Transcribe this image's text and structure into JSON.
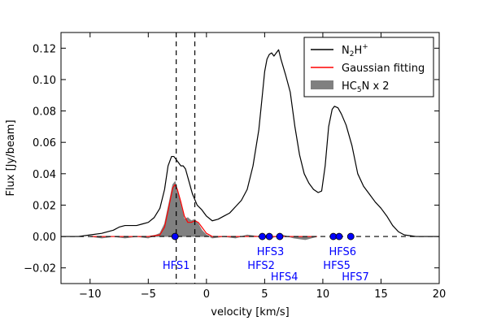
{
  "chart_data": {
    "type": "line",
    "xlabel": "velocity [km/s]",
    "ylabel": "Flux [Jy/beam]",
    "xlim": [
      -12.5,
      20
    ],
    "ylim": [
      -0.03,
      0.13
    ],
    "xticks": [
      -10,
      -5,
      0,
      5,
      10,
      15,
      20
    ],
    "xtick_labels": [
      "−10",
      "−5",
      "0",
      "5",
      "10",
      "15",
      "20"
    ],
    "yticks": [
      -0.02,
      0.0,
      0.02,
      0.04,
      0.06,
      0.08,
      0.1,
      0.12
    ],
    "ytick_labels": [
      "−0.02",
      "0.00",
      "0.02",
      "0.04",
      "0.06",
      "0.08",
      "0.10",
      "0.12"
    ],
    "legend_position": "top-right",
    "legend": [
      {
        "label_main": "N",
        "label_sub": "2",
        "label_rest": "H",
        "label_sup": "+",
        "kind": "line",
        "color": "#000000"
      },
      {
        "label_main": "Gaussian fitting",
        "kind": "line",
        "color": "#ff0000"
      },
      {
        "label_main": "HC",
        "label_sub": "5",
        "label_rest": "N x 2",
        "kind": "patch",
        "color": "#808080"
      }
    ],
    "series": [
      {
        "name": "N2H+",
        "color": "#000000",
        "points": [
          [
            -12.5,
            0.0
          ],
          [
            -11,
            0.0
          ],
          [
            -10,
            0.001
          ],
          [
            -9,
            0.002
          ],
          [
            -8,
            0.004
          ],
          [
            -7.5,
            0.006
          ],
          [
            -7,
            0.007
          ],
          [
            -6.5,
            0.007
          ],
          [
            -6,
            0.007
          ],
          [
            -5.5,
            0.008
          ],
          [
            -5,
            0.009
          ],
          [
            -4.5,
            0.012
          ],
          [
            -4,
            0.018
          ],
          [
            -3.6,
            0.03
          ],
          [
            -3.3,
            0.045
          ],
          [
            -3.0,
            0.051
          ],
          [
            -2.8,
            0.051
          ],
          [
            -2.6,
            0.049
          ],
          [
            -2.4,
            0.047
          ],
          [
            -2.2,
            0.045
          ],
          [
            -2.0,
            0.045
          ],
          [
            -1.8,
            0.043
          ],
          [
            -1.5,
            0.035
          ],
          [
            -1.2,
            0.027
          ],
          [
            -0.8,
            0.02
          ],
          [
            -0.4,
            0.017
          ],
          [
            0.0,
            0.013
          ],
          [
            0.5,
            0.01
          ],
          [
            1.0,
            0.011
          ],
          [
            1.5,
            0.013
          ],
          [
            2.0,
            0.015
          ],
          [
            2.5,
            0.019
          ],
          [
            3.0,
            0.023
          ],
          [
            3.5,
            0.03
          ],
          [
            4.0,
            0.045
          ],
          [
            4.5,
            0.068
          ],
          [
            4.8,
            0.09
          ],
          [
            5.0,
            0.105
          ],
          [
            5.2,
            0.113
          ],
          [
            5.4,
            0.116
          ],
          [
            5.6,
            0.117
          ],
          [
            5.8,
            0.115
          ],
          [
            6.0,
            0.117
          ],
          [
            6.2,
            0.119
          ],
          [
            6.4,
            0.113
          ],
          [
            6.8,
            0.103
          ],
          [
            7.2,
            0.092
          ],
          [
            7.6,
            0.07
          ],
          [
            8.0,
            0.052
          ],
          [
            8.4,
            0.04
          ],
          [
            8.8,
            0.034
          ],
          [
            9.2,
            0.03
          ],
          [
            9.6,
            0.028
          ],
          [
            9.9,
            0.029
          ],
          [
            10.2,
            0.045
          ],
          [
            10.5,
            0.07
          ],
          [
            10.8,
            0.081
          ],
          [
            11.0,
            0.083
          ],
          [
            11.3,
            0.082
          ],
          [
            11.6,
            0.078
          ],
          [
            12.0,
            0.071
          ],
          [
            12.5,
            0.058
          ],
          [
            13.0,
            0.04
          ],
          [
            13.5,
            0.032
          ],
          [
            14.0,
            0.027
          ],
          [
            14.5,
            0.022
          ],
          [
            15.0,
            0.018
          ],
          [
            15.5,
            0.013
          ],
          [
            16.0,
            0.007
          ],
          [
            16.5,
            0.003
          ],
          [
            17.0,
            0.001
          ],
          [
            18.0,
            0.0
          ],
          [
            20.0,
            0.0
          ]
        ]
      },
      {
        "name": "Gaussian fitting",
        "color": "#ff0000",
        "points": [
          [
            -10,
            0.0
          ],
          [
            -8,
            0.0
          ],
          [
            -5,
            0.0
          ],
          [
            -4.0,
            0.001
          ],
          [
            -3.6,
            0.006
          ],
          [
            -3.2,
            0.02
          ],
          [
            -2.9,
            0.031
          ],
          [
            -2.7,
            0.033
          ],
          [
            -2.5,
            0.03
          ],
          [
            -2.2,
            0.022
          ],
          [
            -1.9,
            0.013
          ],
          [
            -1.6,
            0.009
          ],
          [
            -1.3,
            0.009
          ],
          [
            -1.0,
            0.01
          ],
          [
            -0.7,
            0.009
          ],
          [
            -0.4,
            0.006
          ],
          [
            0.0,
            0.002
          ],
          [
            0.5,
            0.0
          ],
          [
            3.0,
            0.0
          ],
          [
            6.0,
            0.0
          ],
          [
            9.5,
            0.0
          ]
        ]
      },
      {
        "name": "HC5N x 2",
        "color": "#808080",
        "points": [
          [
            -10,
            0.0
          ],
          [
            -9,
            -0.001
          ],
          [
            -8,
            0.0
          ],
          [
            -7,
            -0.001
          ],
          [
            -6,
            0.0
          ],
          [
            -5,
            -0.001
          ],
          [
            -4.0,
            0.002
          ],
          [
            -3.6,
            0.008
          ],
          [
            -3.2,
            0.022
          ],
          [
            -2.9,
            0.033
          ],
          [
            -2.7,
            0.035
          ],
          [
            -2.5,
            0.03
          ],
          [
            -2.2,
            0.02
          ],
          [
            -1.9,
            0.011
          ],
          [
            -1.6,
            0.012
          ],
          [
            -1.3,
            0.01
          ],
          [
            -1.0,
            0.011
          ],
          [
            -0.7,
            0.008
          ],
          [
            -0.4,
            0.004
          ],
          [
            0.0,
            0.001
          ],
          [
            0.5,
            -0.001
          ],
          [
            1.5,
            0.0
          ],
          [
            2.5,
            -0.001
          ],
          [
            3.5,
            0.001
          ],
          [
            4.5,
            0.0
          ],
          [
            5.5,
            -0.001
          ],
          [
            6.5,
            0.001
          ],
          [
            7.5,
            -0.001
          ],
          [
            8.5,
            -0.002
          ],
          [
            9.5,
            0.0
          ]
        ]
      }
    ],
    "vlines": [
      -2.6,
      -1.0
    ],
    "hline_y": 0.0,
    "hfs_markers": [
      {
        "name": "HFS1",
        "x": -2.7,
        "label_x": -2.6,
        "label_row": 1
      },
      {
        "name": "HFS2",
        "x": 4.8,
        "label_x": 4.7,
        "label_row": 2
      },
      {
        "name": "HFS3",
        "x": 5.4,
        "label_x": 5.5,
        "label_row": 0
      },
      {
        "name": "HFS4",
        "x": 6.3,
        "label_x": 6.7,
        "label_row": 3
      },
      {
        "name": "HFS5",
        "x": 10.9,
        "label_x": 11.2,
        "label_row": 2
      },
      {
        "name": "HFS6",
        "x": 11.4,
        "label_x": 11.7,
        "label_row": 0
      },
      {
        "name": "HFS7",
        "x": 12.4,
        "label_x": 12.8,
        "label_row": 3
      }
    ],
    "hfs_color": "#0000ff"
  }
}
